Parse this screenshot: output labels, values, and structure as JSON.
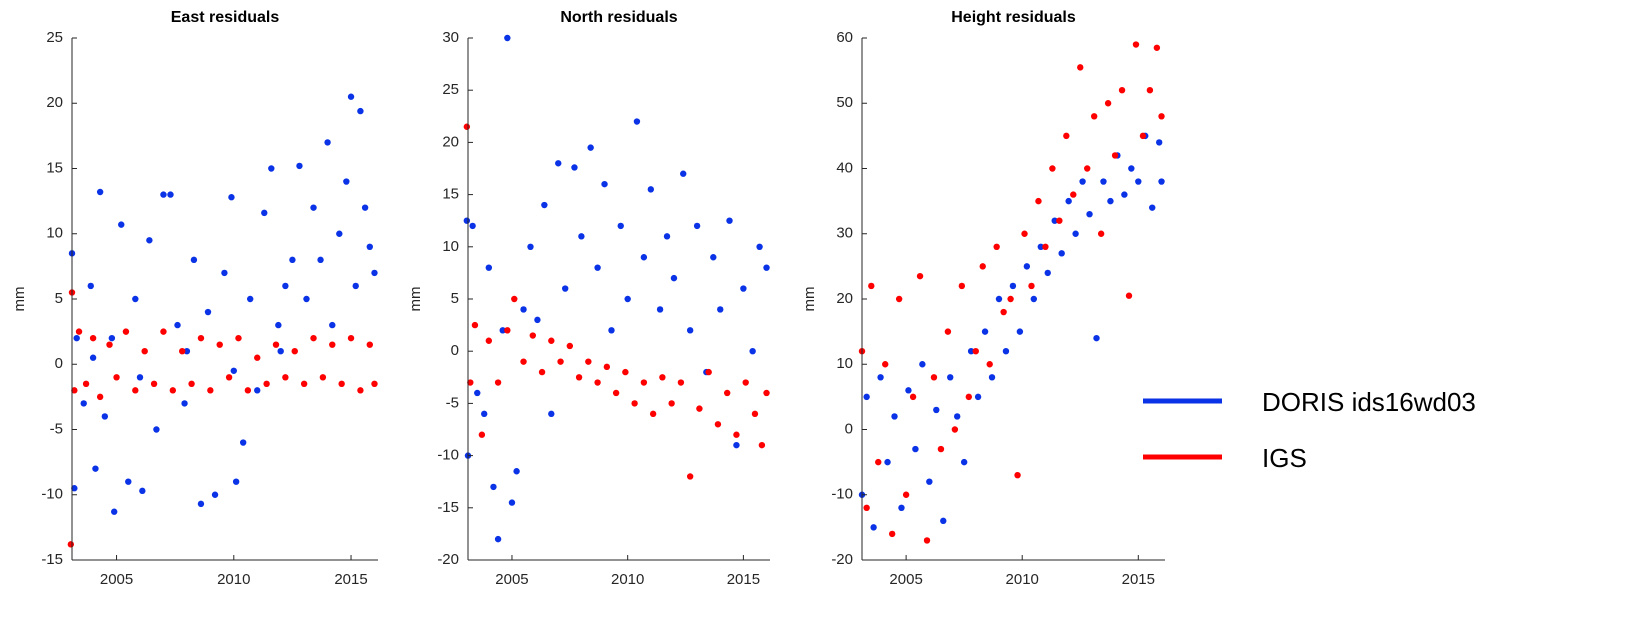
{
  "chart_data": [
    {
      "type": "scatter",
      "title": "East residuals",
      "y_label": "mm",
      "xlim": [
        2003.1,
        2016.15
      ],
      "xticks": [
        2005,
        2010,
        2015
      ],
      "ylim": [
        -15,
        25
      ],
      "yticks": [
        -15,
        -10,
        -5,
        0,
        5,
        10,
        15,
        20,
        25
      ],
      "series": [
        {
          "color": "#0a32e6",
          "x": [
            2003.1,
            2003.2,
            2003.3,
            2003.6,
            2003.9,
            2004.0,
            2004.1,
            2004.3,
            2004.5,
            2004.8,
            2004.9,
            2005.2,
            2005.5,
            2005.8,
            2006.0,
            2006.1,
            2006.4,
            2006.7,
            2007.0,
            2007.3,
            2007.6,
            2007.9,
            2008.0,
            2008.3,
            2008.6,
            2008.9,
            2009.2,
            2009.6,
            2009.9,
            2010.0,
            2010.1,
            2010.4,
            2010.7,
            2011.0,
            2011.3,
            2011.6,
            2011.9,
            2012.0,
            2012.2,
            2012.5,
            2012.8,
            2013.1,
            2013.4,
            2013.7,
            2014.0,
            2014.2,
            2014.5,
            2014.8,
            2015.0,
            2015.2,
            2015.4,
            2015.6,
            2015.8,
            2016.0
          ],
          "values": [
            8.5,
            -9.5,
            2,
            -3,
            6,
            0.5,
            -8,
            13.2,
            -4,
            2,
            -11.3,
            10.7,
            -9,
            5,
            -1,
            -9.7,
            9.5,
            -5,
            13,
            13,
            3,
            -3,
            1,
            8,
            -10.7,
            4,
            -10,
            7,
            12.8,
            -0.5,
            -9,
            -6,
            5,
            -2,
            11.6,
            15,
            3,
            1,
            6,
            8,
            15.2,
            5,
            12,
            8,
            17,
            3,
            10,
            14,
            20.5,
            6,
            19.4,
            12,
            9,
            7
          ]
        },
        {
          "color": "#ff0000",
          "x": [
            2003.05,
            2003.1,
            2003.2,
            2003.4,
            2003.7,
            2004.0,
            2004.3,
            2004.7,
            2005.0,
            2005.4,
            2005.8,
            2006.2,
            2006.6,
            2007.0,
            2007.4,
            2007.8,
            2008.2,
            2008.6,
            2009.0,
            2009.4,
            2009.8,
            2010.2,
            2010.6,
            2011.0,
            2011.4,
            2011.8,
            2012.2,
            2012.6,
            2013.0,
            2013.4,
            2013.8,
            2014.2,
            2014.6,
            2015.0,
            2015.4,
            2015.8,
            2016.0
          ],
          "values": [
            -13.8,
            5.5,
            -2,
            2.5,
            -1.5,
            2,
            -2.5,
            1.5,
            -1,
            2.5,
            -2,
            1,
            -1.5,
            2.5,
            -2,
            1,
            -1.5,
            2,
            -2,
            1.5,
            -1,
            2,
            -2,
            0.5,
            -1.5,
            1.5,
            -1,
            1,
            -1.5,
            2,
            -1,
            1.5,
            -1.5,
            2,
            -2,
            1.5,
            -1.5
          ]
        }
      ]
    },
    {
      "type": "scatter",
      "title": "North residuals",
      "y_label": "mm",
      "xlim": [
        2003.1,
        2016.15
      ],
      "xticks": [
        2005,
        2010,
        2015
      ],
      "ylim": [
        -20,
        30
      ],
      "yticks": [
        -20,
        -15,
        -10,
        -5,
        0,
        5,
        10,
        15,
        20,
        25,
        30
      ],
      "series": [
        {
          "color": "#0a32e6",
          "x": [
            2003.05,
            2003.1,
            2003.3,
            2003.5,
            2003.8,
            2004.0,
            2004.2,
            2004.4,
            2004.6,
            2004.8,
            2005.0,
            2005.2,
            2005.5,
            2005.8,
            2006.1,
            2006.4,
            2006.7,
            2007.0,
            2007.3,
            2007.7,
            2008.0,
            2008.4,
            2008.7,
            2009.0,
            2009.3,
            2009.7,
            2010.0,
            2010.4,
            2010.7,
            2011.0,
            2011.4,
            2011.7,
            2012.0,
            2012.4,
            2012.7,
            2013.0,
            2013.4,
            2013.7,
            2014.0,
            2014.4,
            2014.7,
            2015.0,
            2015.4,
            2015.7,
            2016.0
          ],
          "values": [
            12.5,
            -10,
            12,
            -4,
            -6,
            8,
            -13,
            -18,
            2,
            30,
            -14.5,
            -11.5,
            4,
            10,
            3,
            14,
            -6,
            18,
            6,
            17.6,
            11,
            19.5,
            8,
            16,
            2,
            12,
            5,
            22,
            9,
            15.5,
            4,
            11,
            7,
            17,
            2,
            12,
            -2,
            9,
            4,
            12.5,
            -9,
            6,
            0,
            10,
            8
          ]
        },
        {
          "color": "#ff0000",
          "x": [
            2003.05,
            2003.2,
            2003.4,
            2003.7,
            2004.0,
            2004.4,
            2004.8,
            2005.1,
            2005.5,
            2005.9,
            2006.3,
            2006.7,
            2007.1,
            2007.5,
            2007.9,
            2008.3,
            2008.7,
            2009.1,
            2009.5,
            2009.9,
            2010.3,
            2010.7,
            2011.1,
            2011.5,
            2011.9,
            2012.3,
            2012.7,
            2013.1,
            2013.5,
            2013.9,
            2014.3,
            2014.7,
            2015.1,
            2015.5,
            2015.8,
            2016.0
          ],
          "values": [
            21.5,
            -3,
            2.5,
            -8,
            1,
            -3,
            2,
            5,
            -1,
            1.5,
            -2,
            1,
            -1,
            0.5,
            -2.5,
            -1,
            -3,
            -1.5,
            -4,
            -2,
            -5,
            -3,
            -6,
            -2.5,
            -5,
            -3,
            -12,
            -5.5,
            -2,
            -7,
            -4,
            -8,
            -3,
            -6,
            -9,
            -4
          ]
        }
      ]
    },
    {
      "type": "scatter",
      "title": "Height residuals",
      "y_label": "mm",
      "xlim": [
        2003.1,
        2016.15
      ],
      "xticks": [
        2005,
        2010,
        2015
      ],
      "ylim": [
        -20,
        60
      ],
      "yticks": [
        -20,
        -10,
        0,
        10,
        20,
        30,
        40,
        50,
        60
      ],
      "series": [
        {
          "name": "DORIS ids16wd03",
          "color": "#0a32e6",
          "x": [
            2003.1,
            2003.3,
            2003.6,
            2003.9,
            2004.2,
            2004.5,
            2004.8,
            2005.1,
            2005.4,
            2005.7,
            2006.0,
            2006.3,
            2006.6,
            2006.9,
            2007.2,
            2007.5,
            2007.8,
            2008.1,
            2008.4,
            2008.7,
            2009.0,
            2009.3,
            2009.6,
            2009.9,
            2010.2,
            2010.5,
            2010.8,
            2011.1,
            2011.4,
            2011.7,
            2012.0,
            2012.3,
            2012.6,
            2012.9,
            2013.2,
            2013.5,
            2013.8,
            2014.1,
            2014.4,
            2014.7,
            2015.0,
            2015.3,
            2015.6,
            2015.9,
            2016.0
          ],
          "values": [
            -10,
            5,
            -15,
            8,
            -5,
            2,
            -12,
            6,
            -3,
            10,
            -8,
            3,
            -14,
            8,
            2,
            -5,
            12,
            5,
            15,
            8,
            20,
            12,
            22,
            15,
            25,
            20,
            28,
            24,
            32,
            27,
            35,
            30,
            38,
            33,
            14,
            38,
            35,
            42,
            36,
            40,
            38,
            45,
            34,
            44,
            38
          ]
        },
        {
          "name": "IGS",
          "color": "#ff0000",
          "x": [
            2003.1,
            2003.3,
            2003.5,
            2003.8,
            2004.1,
            2004.4,
            2004.7,
            2005.0,
            2005.3,
            2005.6,
            2005.9,
            2006.2,
            2006.5,
            2006.8,
            2007.1,
            2007.4,
            2007.7,
            2008.0,
            2008.3,
            2008.6,
            2008.9,
            2009.2,
            2009.5,
            2009.8,
            2010.1,
            2010.4,
            2010.7,
            2011.0,
            2011.3,
            2011.6,
            2011.9,
            2012.2,
            2012.5,
            2012.8,
            2013.1,
            2013.4,
            2013.7,
            2014.0,
            2014.3,
            2014.6,
            2014.9,
            2015.2,
            2015.5,
            2015.8,
            2016.0
          ],
          "values": [
            12,
            -12,
            22,
            -5,
            10,
            -16,
            20,
            -10,
            5,
            23.5,
            -17,
            8,
            -3,
            15,
            0,
            22,
            5,
            12,
            25,
            10,
            28,
            18,
            20,
            -7,
            30,
            22,
            35,
            28,
            40,
            32,
            45,
            36,
            55.5,
            40,
            48,
            30,
            50,
            42,
            52,
            20.5,
            59,
            45,
            52,
            58.5,
            48
          ]
        }
      ]
    }
  ]
}
